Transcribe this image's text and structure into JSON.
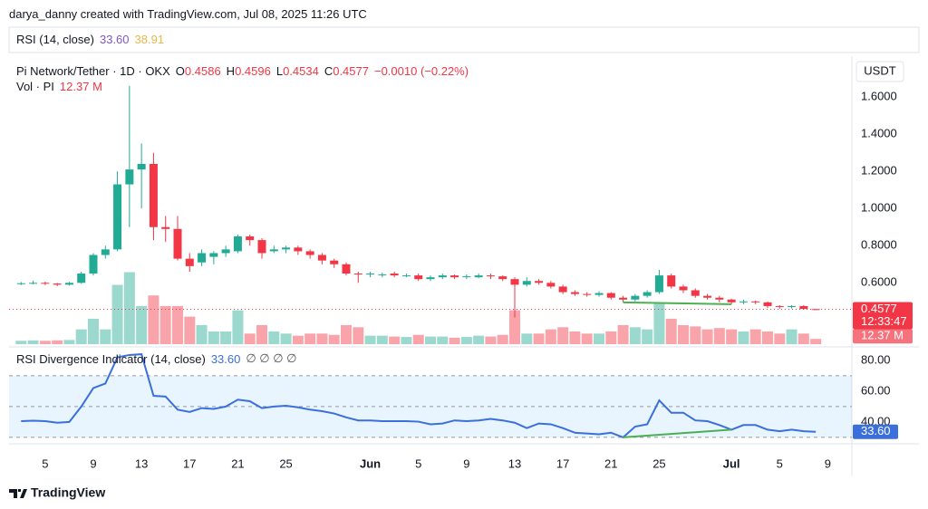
{
  "header": {
    "credit": "darya_danny created with TradingView.com, Jul 08, 2025 11:26 UTC",
    "rsi_legend": {
      "label": "RSI (14, close)",
      "value": {
        "value": 33.6,
        "label": "33.60"
      },
      "ma": 38.91
    }
  },
  "footer": {
    "brand": "TradingView"
  },
  "chart_data": [
    {
      "type": "candlestick",
      "title": "Pi Network/Tether · 1D · OKX",
      "y_axis_label": "USDT",
      "ohlc_legend": [
        {
          "key": "O",
          "value": 0.4586
        },
        {
          "key": "H",
          "value": 0.4596
        },
        {
          "key": "L",
          "value": 0.4534
        },
        {
          "key": "C",
          "value": 0.4577
        }
      ],
      "change": {
        "value": -0.001,
        "label": "−0.0010 (−0.22%)"
      },
      "last_price": {
        "value": 0.4577,
        "label": "0.4577"
      },
      "countdown": "12:33:47",
      "up_color": "#22ab94",
      "down_color": "#f23645",
      "divergence_color": "#4caf50",
      "divergence_x": [
        "2025-06-22",
        "2025-07-01"
      ],
      "xlim": [
        "2025-05-02",
        "2025-07-11"
      ],
      "xticks": [
        {
          "value": "2025-05-05",
          "label": "5"
        },
        {
          "value": "2025-05-09",
          "label": "9"
        },
        {
          "value": "2025-05-13",
          "label": "13"
        },
        {
          "value": "2025-05-17",
          "label": "17"
        },
        {
          "value": "2025-05-21",
          "label": "21"
        },
        {
          "value": "2025-05-25",
          "label": "25"
        },
        {
          "value": "2025-06-01",
          "label": "Jun"
        },
        {
          "value": "2025-06-05",
          "label": "5"
        },
        {
          "value": "2025-06-09",
          "label": "9"
        },
        {
          "value": "2025-06-13",
          "label": "13"
        },
        {
          "value": "2025-06-17",
          "label": "17"
        },
        {
          "value": "2025-06-21",
          "label": "21"
        },
        {
          "value": "2025-06-25",
          "label": "25"
        },
        {
          "value": "2025-07-01",
          "label": "Jul"
        },
        {
          "value": "2025-07-05",
          "label": "5"
        },
        {
          "value": "2025-07-09",
          "label": "9"
        }
      ],
      "ylim": [
        0.27,
        1.82
      ],
      "yticks": [
        {
          "value": 0.6,
          "label": "0.6000"
        },
        {
          "value": 0.8,
          "label": "0.8000"
        },
        {
          "value": 1.0,
          "label": "1.0000"
        },
        {
          "value": 1.2,
          "label": "1.2000"
        },
        {
          "value": 1.4,
          "label": "1.4000"
        },
        {
          "value": 1.6,
          "label": "1.6000"
        }
      ],
      "x": [
        "2025-05-03",
        "2025-05-04",
        "2025-05-05",
        "2025-05-06",
        "2025-05-07",
        "2025-05-08",
        "2025-05-09",
        "2025-05-10",
        "2025-05-11",
        "2025-05-12",
        "2025-05-13",
        "2025-05-14",
        "2025-05-15",
        "2025-05-16",
        "2025-05-17",
        "2025-05-18",
        "2025-05-19",
        "2025-05-20",
        "2025-05-21",
        "2025-05-22",
        "2025-05-23",
        "2025-05-24",
        "2025-05-25",
        "2025-05-26",
        "2025-05-27",
        "2025-05-28",
        "2025-05-29",
        "2025-05-30",
        "2025-05-31",
        "2025-06-01",
        "2025-06-02",
        "2025-06-03",
        "2025-06-04",
        "2025-06-05",
        "2025-06-06",
        "2025-06-07",
        "2025-06-08",
        "2025-06-09",
        "2025-06-10",
        "2025-06-11",
        "2025-06-12",
        "2025-06-13",
        "2025-06-14",
        "2025-06-15",
        "2025-06-16",
        "2025-06-17",
        "2025-06-18",
        "2025-06-19",
        "2025-06-20",
        "2025-06-21",
        "2025-06-22",
        "2025-06-23",
        "2025-06-24",
        "2025-06-25",
        "2025-06-26",
        "2025-06-27",
        "2025-06-28",
        "2025-06-29",
        "2025-06-30",
        "2025-07-01",
        "2025-07-02",
        "2025-07-03",
        "2025-07-04",
        "2025-07-05",
        "2025-07-06",
        "2025-07-07",
        "2025-07-08"
      ],
      "open": [
        0.595,
        0.598,
        0.6,
        0.596,
        0.59,
        0.6,
        0.65,
        0.75,
        0.78,
        1.13,
        1.21,
        1.24,
        0.9,
        0.89,
        0.73,
        0.71,
        0.74,
        0.76,
        0.77,
        0.85,
        0.83,
        0.77,
        0.78,
        0.79,
        0.77,
        0.75,
        0.72,
        0.7,
        0.65,
        0.645,
        0.645,
        0.65,
        0.64,
        0.64,
        0.62,
        0.63,
        0.64,
        0.63,
        0.63,
        0.64,
        0.635,
        0.62,
        0.59,
        0.61,
        0.6,
        0.58,
        0.55,
        0.54,
        0.535,
        0.545,
        0.52,
        0.51,
        0.53,
        0.55,
        0.64,
        0.58,
        0.56,
        0.53,
        0.52,
        0.51,
        0.495,
        0.5,
        0.495,
        0.475,
        0.47,
        0.475,
        0.4586
      ],
      "high": [
        0.605,
        0.612,
        0.606,
        0.6,
        0.606,
        0.66,
        0.76,
        0.8,
        1.2,
        1.66,
        1.35,
        1.3,
        0.96,
        0.96,
        0.76,
        0.78,
        0.77,
        0.8,
        0.86,
        0.86,
        0.84,
        0.8,
        0.8,
        0.8,
        0.78,
        0.76,
        0.73,
        0.71,
        0.66,
        0.66,
        0.655,
        0.66,
        0.65,
        0.65,
        0.64,
        0.65,
        0.645,
        0.645,
        0.65,
        0.65,
        0.64,
        0.63,
        0.63,
        0.62,
        0.61,
        0.59,
        0.56,
        0.55,
        0.555,
        0.55,
        0.53,
        0.54,
        0.56,
        0.67,
        0.65,
        0.59,
        0.57,
        0.54,
        0.53,
        0.515,
        0.51,
        0.505,
        0.5,
        0.48,
        0.48,
        0.48,
        0.4596
      ],
      "low": [
        0.588,
        0.592,
        0.588,
        0.582,
        0.585,
        0.595,
        0.64,
        0.73,
        0.77,
        0.9,
        1.0,
        0.83,
        0.82,
        0.72,
        0.66,
        0.69,
        0.7,
        0.74,
        0.76,
        0.8,
        0.73,
        0.76,
        0.76,
        0.75,
        0.73,
        0.7,
        0.68,
        0.64,
        0.6,
        0.63,
        0.63,
        0.63,
        0.63,
        0.61,
        0.61,
        0.62,
        0.62,
        0.62,
        0.625,
        0.62,
        0.61,
        0.414,
        0.58,
        0.59,
        0.57,
        0.54,
        0.53,
        0.525,
        0.525,
        0.51,
        0.495,
        0.5,
        0.52,
        0.54,
        0.57,
        0.545,
        0.52,
        0.51,
        0.495,
        0.485,
        0.485,
        0.485,
        0.465,
        0.46,
        0.462,
        0.455,
        0.4534
      ],
      "close": [
        0.598,
        0.6,
        0.596,
        0.59,
        0.6,
        0.65,
        0.75,
        0.78,
        1.13,
        1.21,
        1.24,
        0.9,
        0.89,
        0.73,
        0.69,
        0.76,
        0.76,
        0.78,
        0.85,
        0.83,
        0.76,
        0.78,
        0.79,
        0.77,
        0.75,
        0.72,
        0.7,
        0.65,
        0.645,
        0.65,
        0.645,
        0.64,
        0.64,
        0.62,
        0.63,
        0.64,
        0.63,
        0.635,
        0.64,
        0.635,
        0.62,
        0.59,
        0.61,
        0.6,
        0.58,
        0.55,
        0.54,
        0.535,
        0.545,
        0.52,
        0.51,
        0.53,
        0.55,
        0.64,
        0.58,
        0.56,
        0.53,
        0.52,
        0.51,
        0.495,
        0.5,
        0.495,
        0.475,
        0.47,
        0.475,
        0.46,
        0.4577
      ]
    },
    {
      "type": "bar",
      "title": "Vol · PI",
      "ylim": [
        0,
        680
      ],
      "last": {
        "value": 12.37,
        "label": "12.37 M"
      },
      "values": [
        8,
        9,
        8,
        9,
        10,
        35,
        60,
        35,
        140,
        170,
        90,
        115,
        90,
        90,
        65,
        45,
        30,
        30,
        80,
        25,
        45,
        30,
        25,
        20,
        25,
        25,
        22,
        45,
        40,
        20,
        20,
        18,
        17,
        22,
        18,
        18,
        15,
        17,
        20,
        18,
        22,
        80,
        25,
        25,
        35,
        40,
        30,
        25,
        25,
        30,
        45,
        40,
        35,
        95,
        60,
        45,
        42,
        35,
        38,
        35,
        30,
        35,
        30,
        25,
        35,
        25,
        12.37
      ]
    },
    {
      "type": "line",
      "title": "RSI Divergence Indicator (14, close)",
      "color": "#3a6fdc",
      "na_marks": "∅ ∅ ∅ ∅",
      "last": {
        "value": 33.6,
        "label": "33.60"
      },
      "ylim": [
        27,
        87
      ],
      "band": [
        30,
        70
      ],
      "levels": [
        70,
        50,
        30
      ],
      "yticks": [
        {
          "value": 80,
          "label": "80.00"
        },
        {
          "value": 60,
          "label": "60.00"
        },
        {
          "value": 40,
          "label": "40.00"
        }
      ],
      "values": [
        40.5,
        40.8,
        40.5,
        39.5,
        40,
        50,
        62,
        65,
        82,
        83.5,
        84,
        57,
        56.5,
        48,
        46.5,
        49,
        48.5,
        50,
        54.5,
        53.5,
        49,
        50,
        50.5,
        49.5,
        48,
        47,
        45.5,
        43,
        41,
        41,
        40.5,
        40.5,
        40.5,
        40.2,
        38.5,
        39,
        41,
        40.5,
        41,
        42,
        41,
        39.5,
        36,
        39,
        38.5,
        36,
        33,
        32.5,
        32,
        33,
        30,
        37,
        38.5,
        54,
        46,
        46,
        41,
        40.5,
        38,
        35,
        38,
        38,
        35,
        34,
        35,
        34,
        33.6
      ]
    }
  ]
}
